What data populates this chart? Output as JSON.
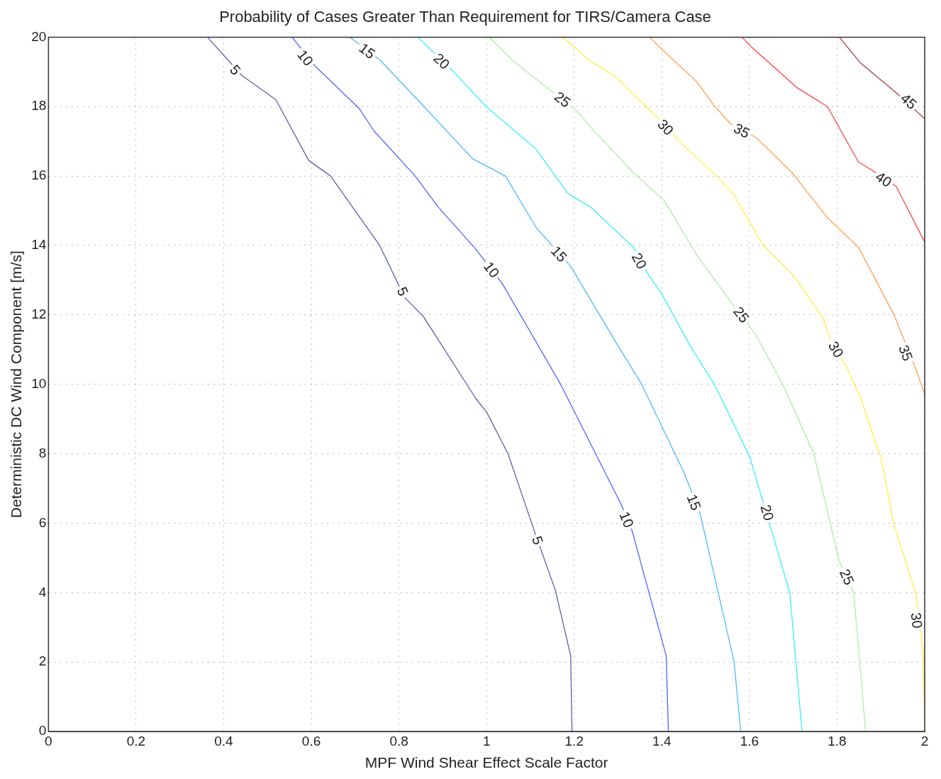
{
  "chart_data": {
    "type": "line",
    "title": "Probability of Cases Greater Than Requirement for TIRS/Camera Case",
    "xlabel": "MPF Wind Shear Effect Scale Factor",
    "ylabel": "Deterministic DC Wind Component [m/s]",
    "xlim": [
      0,
      2
    ],
    "ylim": [
      0,
      20
    ],
    "xticks": [
      0,
      0.2,
      0.4,
      0.6,
      0.8,
      1,
      1.2,
      1.4,
      1.6,
      1.8,
      2
    ],
    "yticks": [
      0,
      2,
      4,
      6,
      8,
      10,
      12,
      14,
      16,
      18,
      20
    ],
    "grid": true,
    "legend": false,
    "marker": "none",
    "line_style": "solid",
    "series": [
      {
        "color": "#5a5fb0",
        "x": [
          0.363,
          0.441,
          0.519,
          0.594,
          0.644,
          0.756,
          0.813,
          0.856,
          0.975,
          1.0,
          1.049,
          1.111,
          1.157,
          1.192,
          1.195
        ],
        "values": [
          20,
          18.9,
          18.2,
          16.45,
          16.0,
          14.0,
          12.5,
          11.95,
          9.6,
          9.2,
          8.0,
          5.7,
          4.07,
          2.18,
          0
        ]
      },
      {
        "color": "#4a66ff",
        "x": [
          0.556,
          0.61,
          0.709,
          0.743,
          0.837,
          0.89,
          0.975,
          1.036,
          1.169,
          1.306,
          1.332,
          1.41,
          1.415
        ],
        "values": [
          20,
          19.15,
          17.95,
          17.3,
          16.0,
          15.1,
          13.9,
          12.9,
          10.0,
          6.57,
          5.79,
          2.18,
          0
        ]
      },
      {
        "color": "#4db8ff",
        "x": [
          0.688,
          0.756,
          0.861,
          0.968,
          1.043,
          1.114,
          1.192,
          1.291,
          1.354,
          1.449,
          1.487,
          1.565,
          1.58
        ],
        "values": [
          20,
          19.35,
          17.95,
          16.5,
          16.0,
          14.5,
          13.4,
          11.3,
          10.0,
          7.5,
          6.3,
          2.0,
          0
        ]
      },
      {
        "color": "#33f0ff",
        "x": [
          0.843,
          0.925,
          0.999,
          1.111,
          1.186,
          1.238,
          1.335,
          1.367,
          1.4,
          1.465,
          1.52,
          1.601,
          1.692,
          1.72
        ],
        "values": [
          20,
          19.0,
          18.0,
          16.8,
          15.5,
          15.1,
          13.95,
          13.2,
          12.6,
          11.1,
          10.0,
          7.9,
          4.0,
          0
        ]
      },
      {
        "color": "#aaf0a0",
        "x": [
          1.006,
          1.062,
          1.148,
          1.205,
          1.238,
          1.335,
          1.405,
          1.481,
          1.562,
          1.611,
          1.676,
          1.747,
          1.805,
          1.838,
          1.865
        ],
        "values": [
          20,
          19.3,
          18.45,
          17.9,
          17.4,
          16.1,
          15.3,
          13.7,
          12.3,
          11.5,
          10.0,
          8.0,
          4.9,
          4.0,
          0
        ]
      },
      {
        "color": "#ffee40",
        "x": [
          1.174,
          1.238,
          1.291,
          1.389,
          1.448,
          1.525,
          1.562,
          1.632,
          1.703,
          1.768,
          1.784,
          1.822,
          1.854,
          1.9,
          1.929,
          1.981,
          1.997,
          2.0
        ],
        "values": [
          20,
          19.3,
          18.9,
          17.7,
          16.9,
          16.0,
          15.5,
          14.0,
          13.1,
          11.9,
          11.3,
          10.5,
          9.6,
          7.9,
          6.0,
          3.9,
          2.2,
          0
        ]
      },
      {
        "color": "#ffa050",
        "x": [
          1.372,
          1.4,
          1.481,
          1.518,
          1.557,
          1.616,
          1.697,
          1.778,
          1.849,
          1.93,
          1.984,
          2.0
        ],
        "values": [
          20,
          19.65,
          18.7,
          18.05,
          17.5,
          17.1,
          16.1,
          14.8,
          13.95,
          12.0,
          10.3,
          9.7
        ]
      },
      {
        "color": "#ff4040",
        "x": [
          1.583,
          1.606,
          1.708,
          1.778,
          1.849,
          1.882,
          1.935,
          2.0
        ],
        "values": [
          20,
          19.7,
          18.55,
          18.0,
          16.4,
          16.15,
          15.7,
          14.1
        ]
      },
      {
        "color": "#a04040",
        "x": [
          1.805,
          1.854,
          1.935,
          2.0
        ],
        "values": [
          20,
          19.25,
          18.4,
          17.65
        ]
      }
    ],
    "annotations": [
      {
        "text": "5",
        "x": 0.426,
        "y": 19.05
      },
      {
        "text": "5",
        "x": 0.808,
        "y": 12.67
      },
      {
        "text": "5",
        "x": 1.116,
        "y": 5.5
      },
      {
        "text": "10",
        "x": 0.586,
        "y": 19.4
      },
      {
        "text": "10",
        "x": 1.011,
        "y": 13.3
      },
      {
        "text": "10",
        "x": 1.319,
        "y": 6.1
      },
      {
        "text": "15",
        "x": 0.727,
        "y": 19.6
      },
      {
        "text": "15",
        "x": 1.165,
        "y": 13.75
      },
      {
        "text": "15",
        "x": 1.473,
        "y": 6.6
      },
      {
        "text": "20",
        "x": 0.897,
        "y": 19.3
      },
      {
        "text": "20",
        "x": 1.348,
        "y": 13.55
      },
      {
        "text": "20",
        "x": 1.64,
        "y": 6.3
      },
      {
        "text": "25",
        "x": 1.173,
        "y": 18.2
      },
      {
        "text": "25",
        "x": 1.581,
        "y": 12.0
      },
      {
        "text": "25",
        "x": 1.822,
        "y": 4.45
      },
      {
        "text": "30",
        "x": 1.408,
        "y": 17.4
      },
      {
        "text": "30",
        "x": 1.797,
        "y": 11.0
      },
      {
        "text": "30",
        "x": 1.981,
        "y": 3.2
      },
      {
        "text": "35",
        "x": 1.582,
        "y": 17.3
      },
      {
        "text": "35",
        "x": 1.956,
        "y": 10.9
      },
      {
        "text": "40",
        "x": 1.906,
        "y": 15.9
      },
      {
        "text": "45",
        "x": 1.963,
        "y": 18.15
      }
    ]
  }
}
